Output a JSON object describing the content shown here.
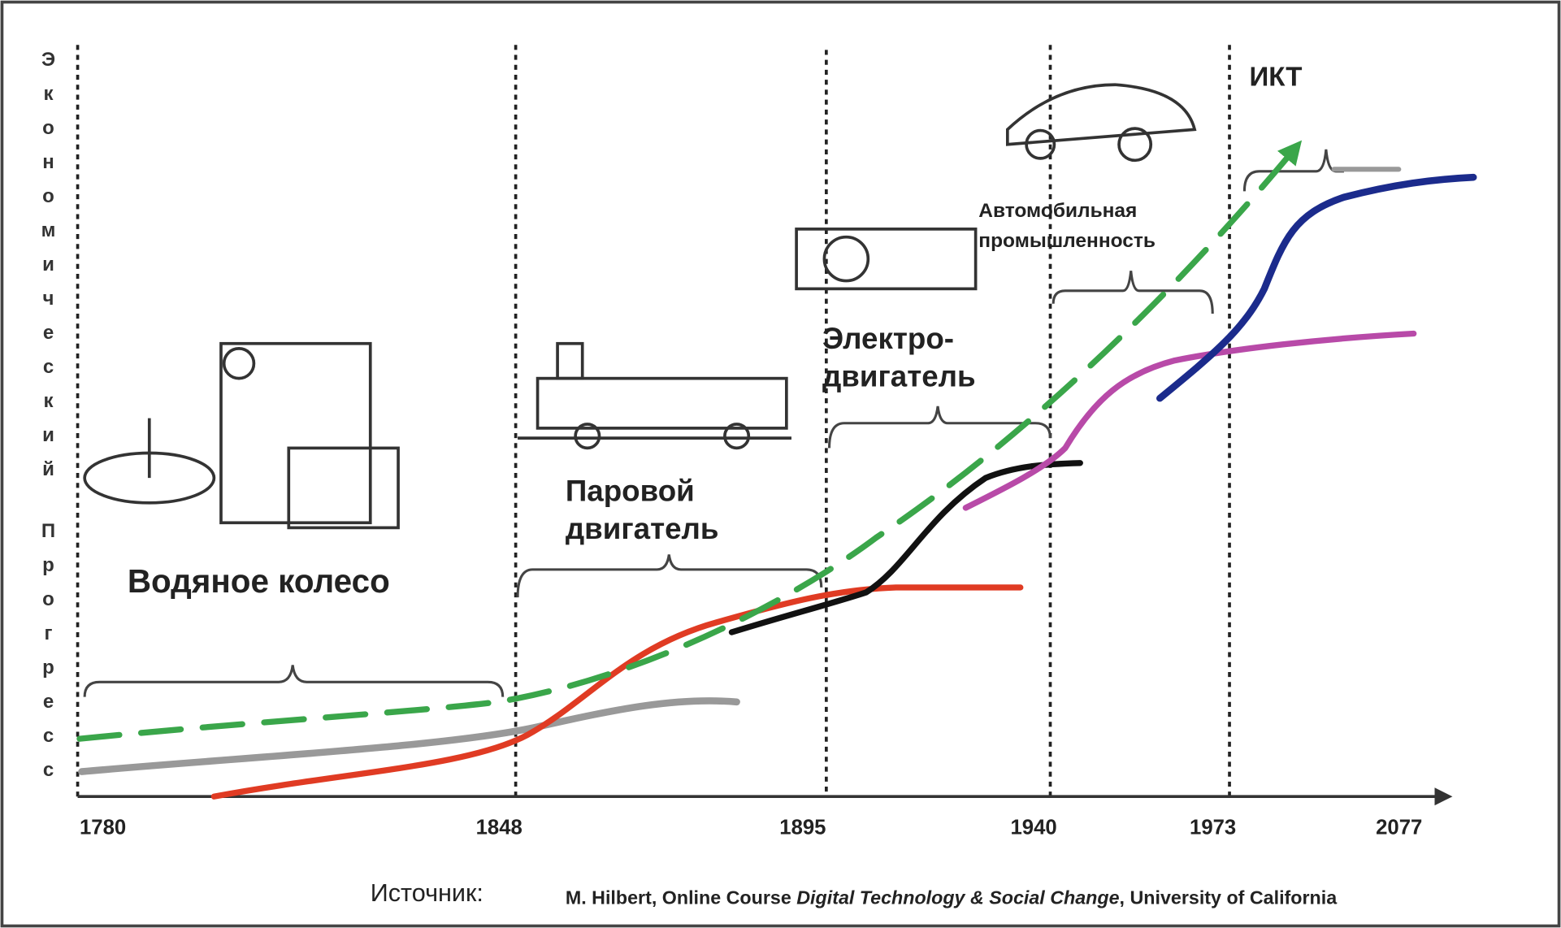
{
  "y_axis": {
    "labels": [
      "Экономический",
      "Прогресс"
    ]
  },
  "x_labels": [
    "1780",
    "1848",
    "1895",
    "1940",
    "1973",
    "2077"
  ],
  "eras": {
    "water_wheel": "Водяное колесо",
    "steam": [
      "Паровой",
      "двигатель"
    ],
    "electric": [
      "Электро-",
      "двигатель"
    ],
    "auto": [
      "Автомобильная",
      "промышленность"
    ],
    "ict": "ИКТ"
  },
  "source": {
    "label": "Источник:",
    "parts": [
      "M. Hilbert, Online Course ",
      "Digital Technology & Social Change",
      ", University of California"
    ]
  }
}
